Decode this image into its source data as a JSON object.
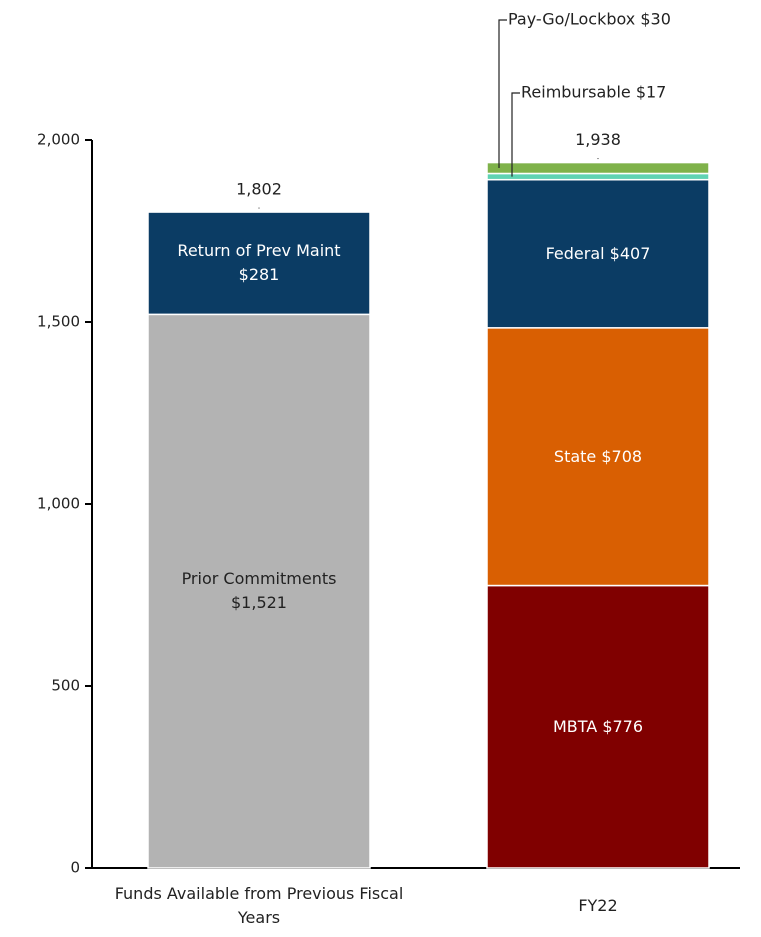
{
  "chart_data": {
    "type": "stacked_bar",
    "categories": [
      "Funds Available from Previous Fiscal Years",
      "FY22"
    ],
    "series": [
      {
        "color": "#b3b3b3",
        "label_color": "#222222",
        "values": [
          1521,
          null
        ],
        "value_labels": [
          "Prior Commitments $1,521",
          null
        ]
      },
      {
        "color": "#0b3c64",
        "label_color": "#ffffff",
        "values": [
          281,
          null
        ],
        "value_labels": [
          "Return of Prev Maint $281",
          null
        ]
      },
      {
        "color": "#800000",
        "label_color": "#ffffff",
        "values": [
          null,
          776
        ],
        "value_labels": [
          null,
          "MBTA $776"
        ]
      },
      {
        "color": "#d95f02",
        "label_color": "#ffffff",
        "values": [
          null,
          708
        ],
        "value_labels": [
          null,
          "State $708"
        ]
      },
      {
        "color": "#0b3c64",
        "label_color": "#ffffff",
        "values": [
          null,
          407
        ],
        "value_labels": [
          null,
          "Federal $407"
        ]
      },
      {
        "color": "#5fd3b3",
        "label_color": "#222222",
        "values": [
          null,
          17
        ],
        "value_labels": [
          null,
          "Reimbursable $17"
        ]
      },
      {
        "color": "#7fb24a",
        "label_color": "#222222",
        "values": [
          null,
          30
        ],
        "value_labels": [
          null,
          "Pay-Go/Lockbox $30"
        ]
      }
    ],
    "totals": [
      1802,
      1938
    ],
    "total_labels": [
      "1,802",
      "1,938"
    ],
    "ylim": [
      0,
      2000
    ],
    "yticks": [
      0,
      {
        "value": 500,
        "label": "500"
      },
      {
        "value": 1000,
        "label": "1,000"
      },
      {
        "value": 1500,
        "label": "1,500"
      },
      {
        "value": 2000,
        "label": "2,000"
      }
    ]
  }
}
